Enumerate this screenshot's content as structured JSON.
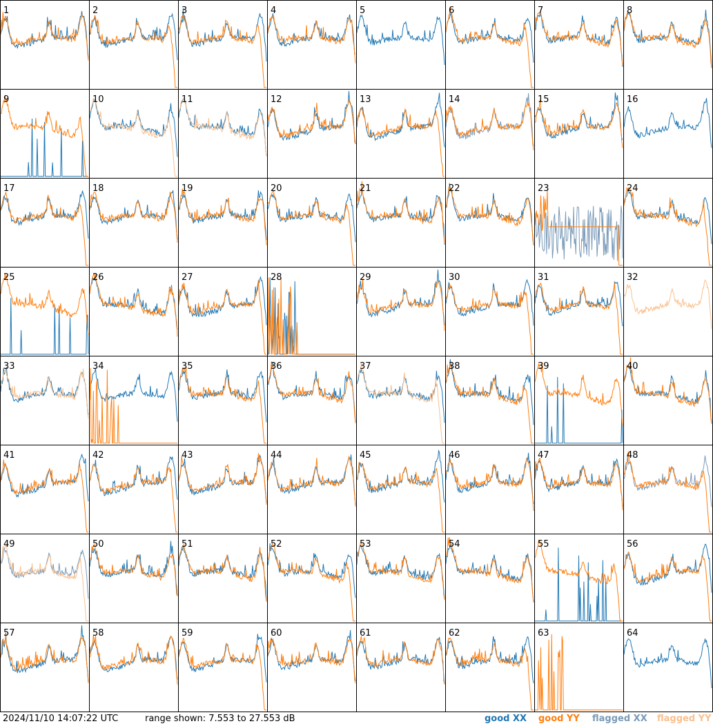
{
  "chart_data": {
    "type": "line",
    "layout": "8x8 small multiples",
    "tile_count": 64,
    "tile_labels": [
      "1",
      "2",
      "3",
      "4",
      "5",
      "6",
      "7",
      "8",
      "9",
      "10",
      "11",
      "12",
      "13",
      "14",
      "15",
      "16",
      "17",
      "18",
      "19",
      "20",
      "21",
      "22",
      "23",
      "24",
      "25",
      "26",
      "27",
      "28",
      "29",
      "30",
      "31",
      "32",
      "33",
      "34",
      "35",
      "36",
      "37",
      "38",
      "39",
      "40",
      "41",
      "42",
      "43",
      "44",
      "45",
      "46",
      "47",
      "48",
      "49",
      "50",
      "51",
      "52",
      "53",
      "54",
      "55",
      "56",
      "57",
      "58",
      "59",
      "60",
      "61",
      "62",
      "63",
      "64"
    ],
    "y_range_db": [
      7.553,
      27.553
    ],
    "series": [
      {
        "name": "good XX",
        "color": "#1f77b4"
      },
      {
        "name": "good YY",
        "color": "#ff7f0e"
      },
      {
        "name": "flagged XX",
        "color": "#7a9ab8"
      },
      {
        "name": "flagged YY",
        "color": "#f9c08f"
      }
    ],
    "tile_states": {
      "5": {
        "yy": "absent"
      },
      "9": {
        "xx": "dropout"
      },
      "10": {
        "yy": "flagged"
      },
      "11": {
        "yy": "flagged"
      },
      "14": {
        "xx": "flagged"
      },
      "16": {
        "yy": "absent"
      },
      "23": {
        "xx": "flagged-noisy",
        "yy": "flat"
      },
      "25": {
        "xx": "dropout"
      },
      "28": {
        "xx": "spikes",
        "yy": "spikes"
      },
      "32": {
        "xx": "absent",
        "yy": "flagged"
      },
      "33": {
        "yy": "flagged"
      },
      "34": {
        "yy": "spikes"
      },
      "37": {
        "yy": "flagged"
      },
      "39": {
        "xx": "dropout"
      },
      "48": {
        "xx": "flagged"
      },
      "49": {
        "xx": "flagged",
        "yy": "flagged"
      },
      "55": {
        "xx": "dropout"
      },
      "63": {
        "xx": "absent",
        "yy": "spikes"
      },
      "64": {
        "yy": "absent"
      }
    }
  },
  "footer": {
    "timestamp": "2024/11/10 14:07:22 UTC",
    "range_text": "range shown: 7.553 to 27.553 dB",
    "legend": [
      "good XX",
      "good YY",
      "flagged XX",
      "flagged YY"
    ]
  },
  "colors": {
    "good_xx": "#1f77b4",
    "good_yy": "#ff7f0e",
    "flagged_xx": "#7a9ab8",
    "flagged_yy": "#f9c08f",
    "frame": "#000000"
  }
}
